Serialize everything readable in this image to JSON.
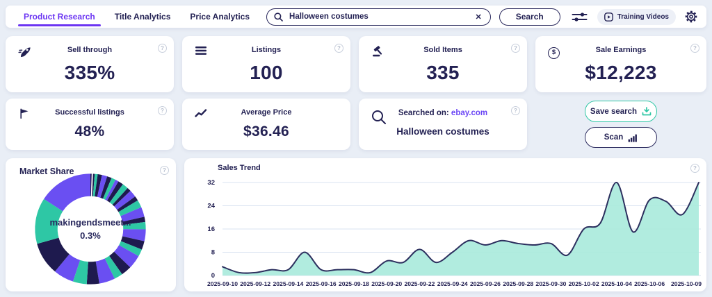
{
  "colors": {
    "accent_purple": "#6B35F2",
    "navy": "#232153",
    "teal": "#2EC7A5",
    "teal_fill": "#A9EADC",
    "pill_bg": "#EDF0F7"
  },
  "icons": {
    "help": "?",
    "clear": "✕",
    "dollar": "$"
  },
  "header": {
    "tabs": [
      {
        "label": "Product Research",
        "active": true
      },
      {
        "label": "Title Analytics",
        "active": false
      },
      {
        "label": "Price Analytics",
        "active": false
      }
    ],
    "search": {
      "value": "Halloween costumes"
    },
    "search_button": "Search",
    "training_videos": "Training Videos"
  },
  "stats": [
    {
      "title": "Sell through",
      "value": "335%"
    },
    {
      "title": "Listings",
      "value": "100"
    },
    {
      "title": "Sold Items",
      "value": "335"
    },
    {
      "title": "Sale Earnings",
      "value": "$12,223"
    },
    {
      "title": "Successful listings",
      "value": "48%"
    },
    {
      "title": "Average Price",
      "value": "$36.46"
    }
  ],
  "searched_card": {
    "prefix": "Searched on:",
    "site": "ebay.com",
    "query": "Halloween costumes"
  },
  "actions": {
    "save_search": "Save search",
    "scan": "Scan"
  },
  "chart_data": [
    {
      "type": "pie",
      "title": "Market Share",
      "center_label": "makingendsmeet...",
      "center_value": "0.3%",
      "legend_position": "none",
      "palette": {
        "purple": "#6A4FF2",
        "teal": "#2EC7A5",
        "navy": "#1E1A4E"
      },
      "segments": [
        {
          "color": "navy",
          "share": 0.5
        },
        {
          "color": "purple",
          "share": 0.3,
          "highlight": true
        },
        {
          "color": "navy",
          "share": 0.5
        },
        {
          "color": "teal",
          "share": 0.9
        },
        {
          "color": "navy",
          "share": 1.3
        },
        {
          "color": "purple",
          "share": 1.6
        },
        {
          "color": "navy",
          "share": 1.4
        },
        {
          "color": "teal",
          "share": 1.3
        },
        {
          "color": "purple",
          "share": 1.0
        },
        {
          "color": "navy",
          "share": 1.6
        },
        {
          "color": "teal",
          "share": 1.8
        },
        {
          "color": "navy",
          "share": 1.2
        },
        {
          "color": "purple",
          "share": 2.2
        },
        {
          "color": "navy",
          "share": 1.4
        },
        {
          "color": "teal",
          "share": 2.3
        },
        {
          "color": "purple",
          "share": 3.0
        },
        {
          "color": "navy",
          "share": 1.6
        },
        {
          "color": "teal",
          "share": 2.2
        },
        {
          "color": "purple",
          "share": 3.6
        },
        {
          "color": "navy",
          "share": 2.6
        },
        {
          "color": "teal",
          "share": 2.2
        },
        {
          "color": "purple",
          "share": 4.2
        },
        {
          "color": "navy",
          "share": 3.2
        },
        {
          "color": "teal",
          "share": 2.6
        },
        {
          "color": "purple",
          "share": 4.8
        },
        {
          "color": "navy",
          "share": 3.8
        },
        {
          "color": "teal",
          "share": 4.2
        },
        {
          "color": "purple",
          "share": 6.2
        },
        {
          "color": "navy",
          "share": 10.0
        },
        {
          "color": "teal",
          "share": 14.0
        },
        {
          "color": "purple",
          "share": 16.5
        }
      ]
    },
    {
      "type": "area",
      "title": "Sales Trend",
      "x": [
        "2025-09-10",
        "2025-09-11",
        "2025-09-12",
        "2025-09-13",
        "2025-09-14",
        "2025-09-15",
        "2025-09-16",
        "2025-09-17",
        "2025-09-18",
        "2025-09-19",
        "2025-09-20",
        "2025-09-21",
        "2025-09-22",
        "2025-09-23",
        "2025-09-24",
        "2025-09-25",
        "2025-09-26",
        "2025-09-27",
        "2025-09-28",
        "2025-09-29",
        "2025-09-30",
        "2025-10-01",
        "2025-10-02",
        "2025-10-03",
        "2025-10-04",
        "2025-10-05",
        "2025-10-06",
        "2025-10-07",
        "2025-10-08",
        "2025-10-09"
      ],
      "values": [
        3,
        1,
        1,
        2,
        2,
        8,
        2,
        2,
        2,
        1,
        5,
        4.5,
        9,
        4.5,
        8,
        12,
        10.5,
        12,
        11,
        10.5,
        11,
        7,
        16,
        18,
        32,
        15,
        26,
        25.5,
        21,
        32
      ],
      "y_ticks": [
        0,
        8,
        16,
        24,
        32
      ],
      "ylim": [
        0,
        32
      ],
      "x_tick_indices": [
        0,
        2,
        4,
        6,
        8,
        10,
        12,
        14,
        16,
        18,
        20,
        22,
        24,
        26,
        29
      ],
      "grid": true,
      "line_color": "#2C2F5E",
      "fill_color": "#A9EADC",
      "grid_color": "#D9E3F1"
    }
  ]
}
